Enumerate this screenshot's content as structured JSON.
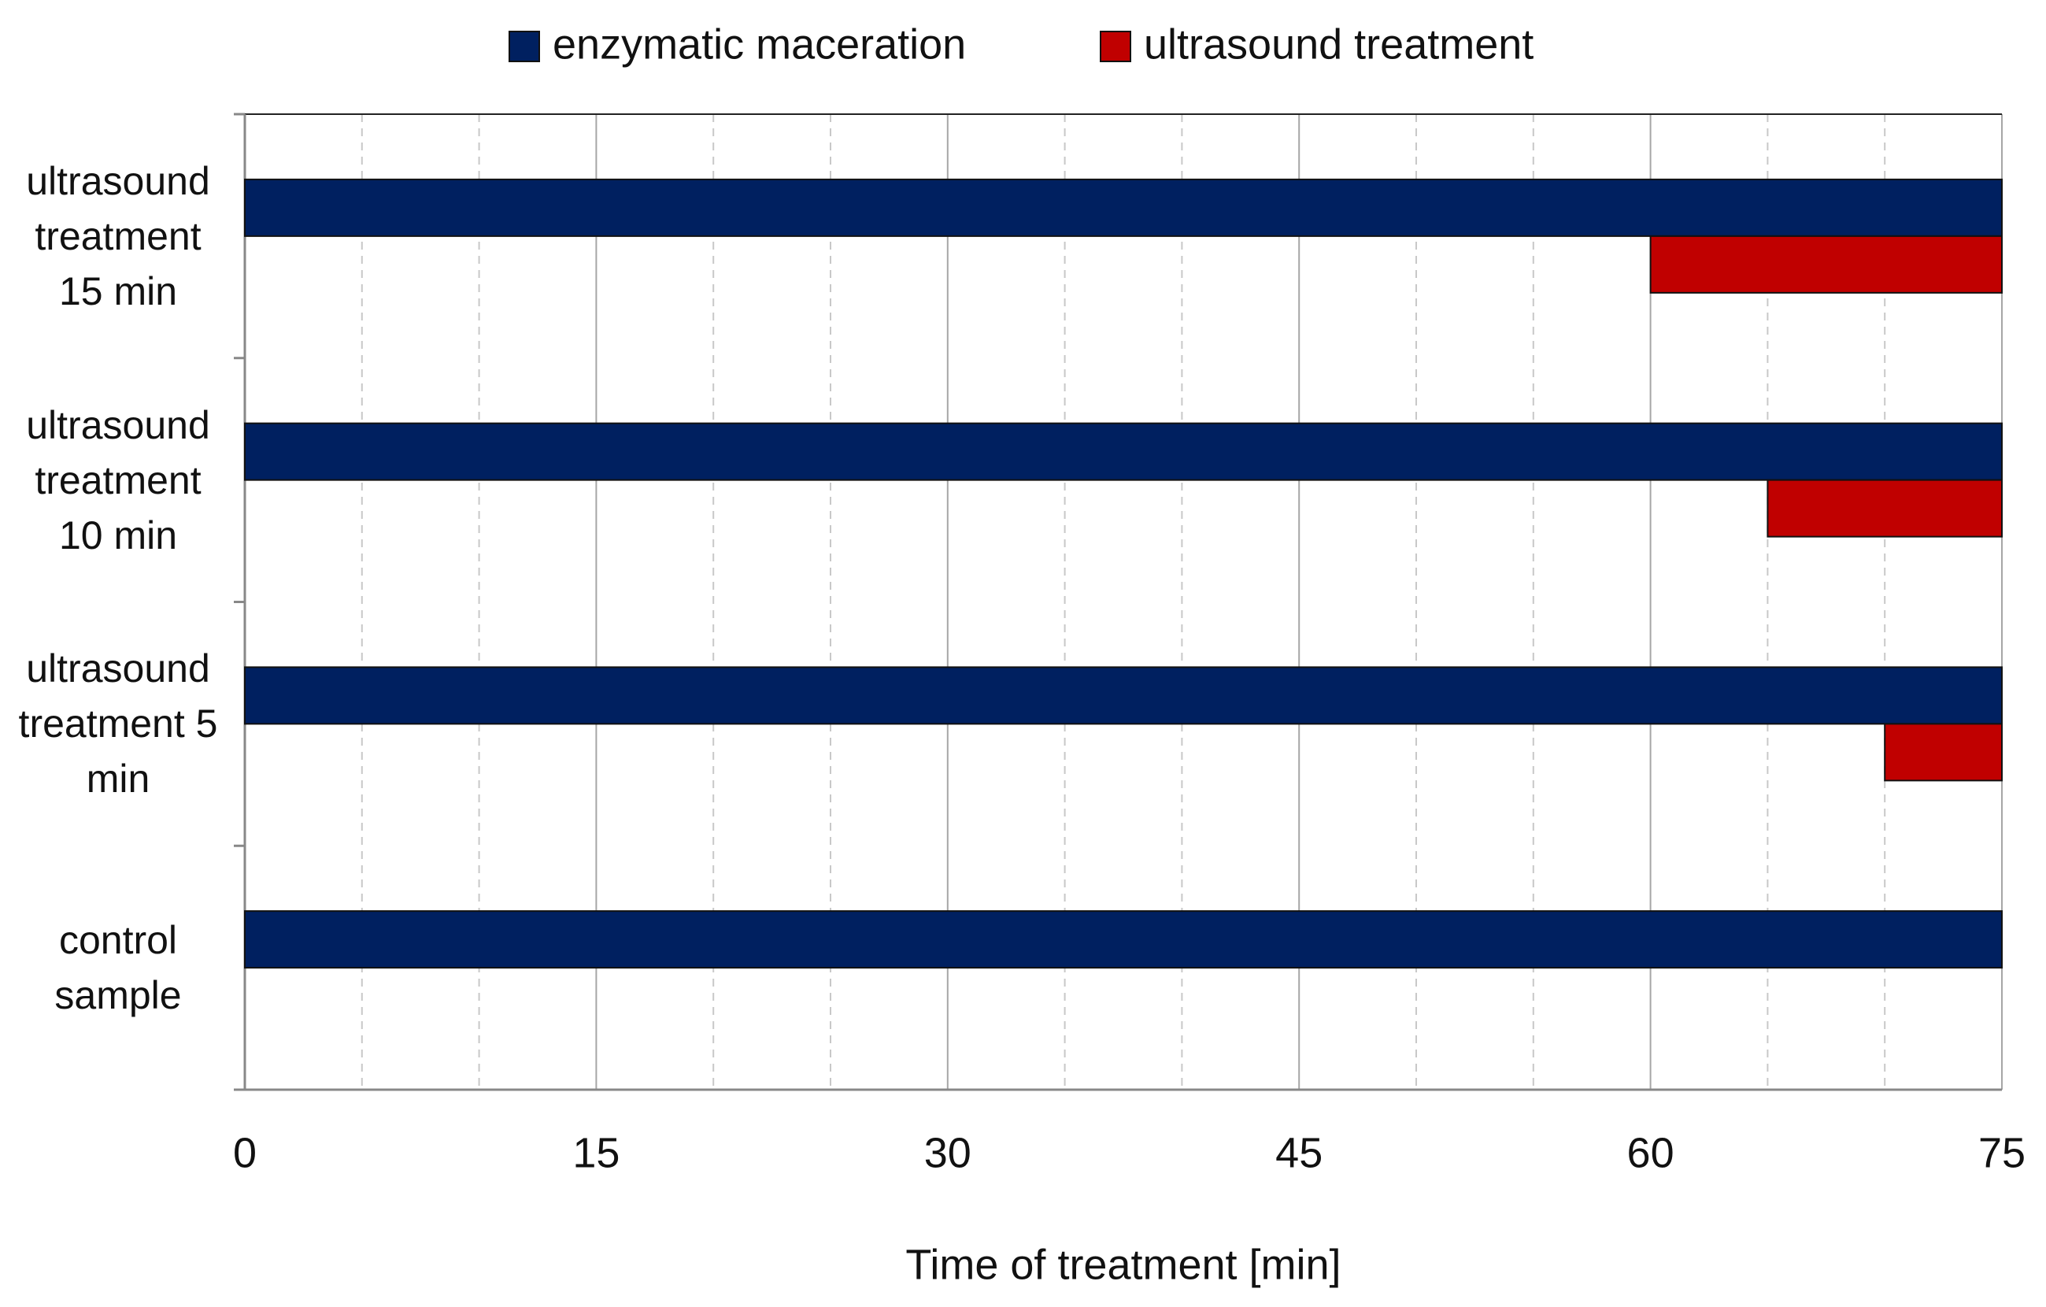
{
  "chart_data": {
    "type": "bar",
    "orientation": "horizontal",
    "categories": [
      "control sample",
      "ultrasound treatment 5 min",
      "ultrasound treatment 10 min",
      "ultrasound treatment 15 min"
    ],
    "series": [
      {
        "name": "enzymatic maceration",
        "color": "#002060",
        "values": [
          75,
          75,
          75,
          75
        ]
      },
      {
        "name": "ultrasound treatment",
        "color": "#c00000",
        "values": [
          null,
          [
            70,
            75
          ],
          [
            65,
            75
          ],
          [
            60,
            75
          ]
        ]
      }
    ],
    "xlim": [
      0,
      75
    ],
    "xticks": [
      0,
      15,
      30,
      45,
      60,
      75
    ],
    "xminor": [
      5,
      10,
      20,
      25,
      35,
      40,
      50,
      55,
      65,
      70
    ],
    "xlabel": "Time of treatment [min]",
    "grid": true,
    "legend": "top"
  }
}
